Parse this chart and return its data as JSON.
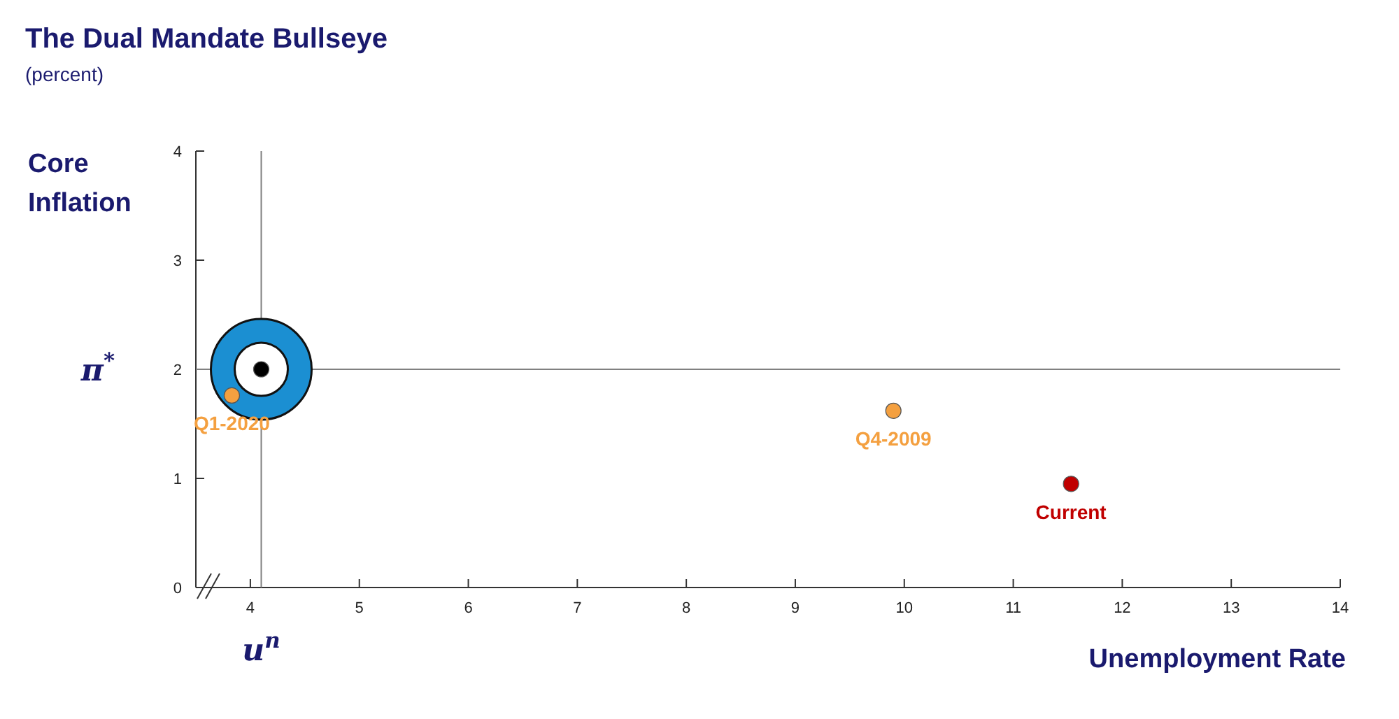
{
  "chart_data": {
    "type": "scatter",
    "title": "The Dual Mandate Bullseye",
    "subtitle": "(percent)",
    "xlabel": "Unemployment Rate",
    "ylabel": "Core Inflation",
    "xlim": [
      3.5,
      14
    ],
    "xticks": [
      4,
      5,
      6,
      7,
      8,
      9,
      10,
      11,
      12,
      13,
      14
    ],
    "ylim": [
      0,
      4
    ],
    "yticks": [
      0,
      1,
      2,
      3,
      4
    ],
    "marker": "circle",
    "grid": false,
    "ref_lines": [
      {
        "axis": "x",
        "value": 4.1,
        "label": "u$^{n}$",
        "color": "#808080"
      },
      {
        "axis": "y",
        "value": 2,
        "label": "π$^{*}$",
        "color": "#808080"
      }
    ],
    "series": [
      {
        "color": "#000000",
        "x": [
          4.1
        ],
        "values": [
          2
        ]
      },
      {
        "name": "Q1-2020",
        "color": "#f4a040",
        "x": [
          3.83
        ],
        "values": [
          1.76
        ]
      },
      {
        "name": "Q4-2009",
        "color": "#f4a040",
        "x": [
          9.9
        ],
        "values": [
          1.62
        ]
      },
      {
        "name": "Current",
        "color": "#c00000",
        "x": [
          11.53
        ],
        "values": [
          0.95
        ]
      }
    ]
  }
}
